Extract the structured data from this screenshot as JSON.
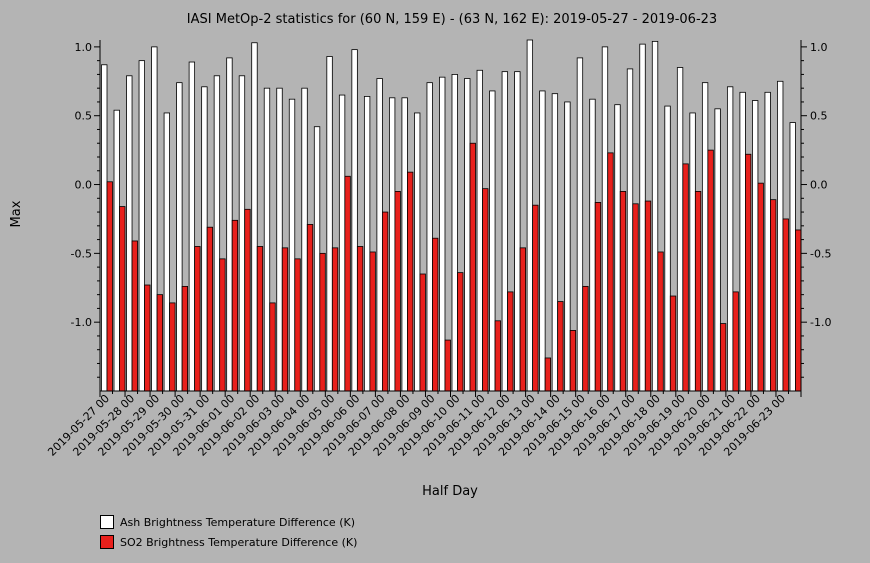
{
  "chart_data": {
    "type": "bar",
    "title": "IASI MetOp-2 statistics for (60 N, 159 E) - (63 N, 162 E): 2019-05-27 - 2019-06-23",
    "xlabel": "Half Day",
    "ylabel": "Max",
    "ylim": [
      -1.5,
      1.05
    ],
    "yticks": [
      1.0,
      0.5,
      0.0,
      -0.5,
      -1.0
    ],
    "ytick_labels": [
      "1.0",
      "0.5",
      "0.0",
      "-0.5",
      "-1.0"
    ],
    "grid": false,
    "legend_position": "bottom-left",
    "categories": [
      "2019-05-27 00",
      "2019-05-27 12",
      "2019-05-28 00",
      "2019-05-28 12",
      "2019-05-29 00",
      "2019-05-29 12",
      "2019-05-30 00",
      "2019-05-30 12",
      "2019-05-31 00",
      "2019-05-31 12",
      "2019-06-01 00",
      "2019-06-01 12",
      "2019-06-02 00",
      "2019-06-02 12",
      "2019-06-03 00",
      "2019-06-03 12",
      "2019-06-04 00",
      "2019-06-04 12",
      "2019-06-05 00",
      "2019-06-05 12",
      "2019-06-06 00",
      "2019-06-06 12",
      "2019-06-07 00",
      "2019-06-07 12",
      "2019-06-08 00",
      "2019-06-08 12",
      "2019-06-09 00",
      "2019-06-09 12",
      "2019-06-10 00",
      "2019-06-10 12",
      "2019-06-11 00",
      "2019-06-11 12",
      "2019-06-12 00",
      "2019-06-12 12",
      "2019-06-13 00",
      "2019-06-13 12",
      "2019-06-14 00",
      "2019-06-14 12",
      "2019-06-15 00",
      "2019-06-15 12",
      "2019-06-16 00",
      "2019-06-16 12",
      "2019-06-17 00",
      "2019-06-17 12",
      "2019-06-18 00",
      "2019-06-18 12",
      "2019-06-19 00",
      "2019-06-19 12",
      "2019-06-20 00",
      "2019-06-20 12",
      "2019-06-21 00",
      "2019-06-21 12",
      "2019-06-22 00",
      "2019-06-22 12",
      "2019-06-23 00",
      "2019-06-23 12"
    ],
    "tick_labels": [
      "2019-05-27 00",
      "2019-05-28 00",
      "2019-05-29 00",
      "2019-05-30 00",
      "2019-05-31 00",
      "2019-06-01 00",
      "2019-06-02 00",
      "2019-06-03 00",
      "2019-06-04 00",
      "2019-06-05 00",
      "2019-06-06 00",
      "2019-06-07 00",
      "2019-06-08 00",
      "2019-06-09 00",
      "2019-06-10 00",
      "2019-06-11 00",
      "2019-06-12 00",
      "2019-06-13 00",
      "2019-06-14 00",
      "2019-06-15 00",
      "2019-06-16 00",
      "2019-06-17 00",
      "2019-06-18 00",
      "2019-06-19 00",
      "2019-06-20 00",
      "2019-06-21 00",
      "2019-06-22 00",
      "2019-06-23 00"
    ],
    "series": [
      {
        "name": "Ash Brightness Temperature Difference (K)",
        "color": "#ffffff",
        "values": [
          0.87,
          0.54,
          0.79,
          0.9,
          1.0,
          0.52,
          0.74,
          0.89,
          0.71,
          0.79,
          0.92,
          0.79,
          1.03,
          0.7,
          0.7,
          0.62,
          0.7,
          0.42,
          0.93,
          0.65,
          0.98,
          0.64,
          0.77,
          0.63,
          0.63,
          0.52,
          0.74,
          0.78,
          0.8,
          0.77,
          0.83,
          0.68,
          0.82,
          0.82,
          1.05,
          0.68,
          0.66,
          0.6,
          0.92,
          0.62,
          1.0,
          0.58,
          0.84,
          1.02,
          1.04,
          0.57,
          0.85,
          0.52,
          0.74,
          0.55,
          0.71,
          0.67,
          0.61,
          0.67,
          0.75,
          0.45
        ]
      },
      {
        "name": "SO2 Brightness Temperature Difference (K)",
        "color": "#e8201c",
        "values": [
          0.02,
          -0.16,
          -0.41,
          -0.73,
          -0.8,
          -0.86,
          -0.74,
          -0.45,
          -0.31,
          -0.54,
          -0.26,
          -0.18,
          -0.45,
          -0.86,
          -0.46,
          -0.54,
          -0.29,
          -0.5,
          -0.46,
          0.06,
          -0.45,
          -0.49,
          -0.2,
          -0.05,
          0.09,
          -0.65,
          -0.39,
          -1.13,
          -0.64,
          0.3,
          -0.03,
          -0.99,
          -0.78,
          -0.46,
          -0.15,
          -1.26,
          -0.85,
          -1.06,
          -0.74,
          -0.13,
          0.23,
          -0.05,
          -0.14,
          -0.12,
          -0.49,
          -0.81,
          0.15,
          -0.05,
          0.25,
          -1.01,
          -0.78,
          0.22,
          0.01,
          -0.11,
          -0.25,
          -0.33
        ]
      }
    ]
  }
}
